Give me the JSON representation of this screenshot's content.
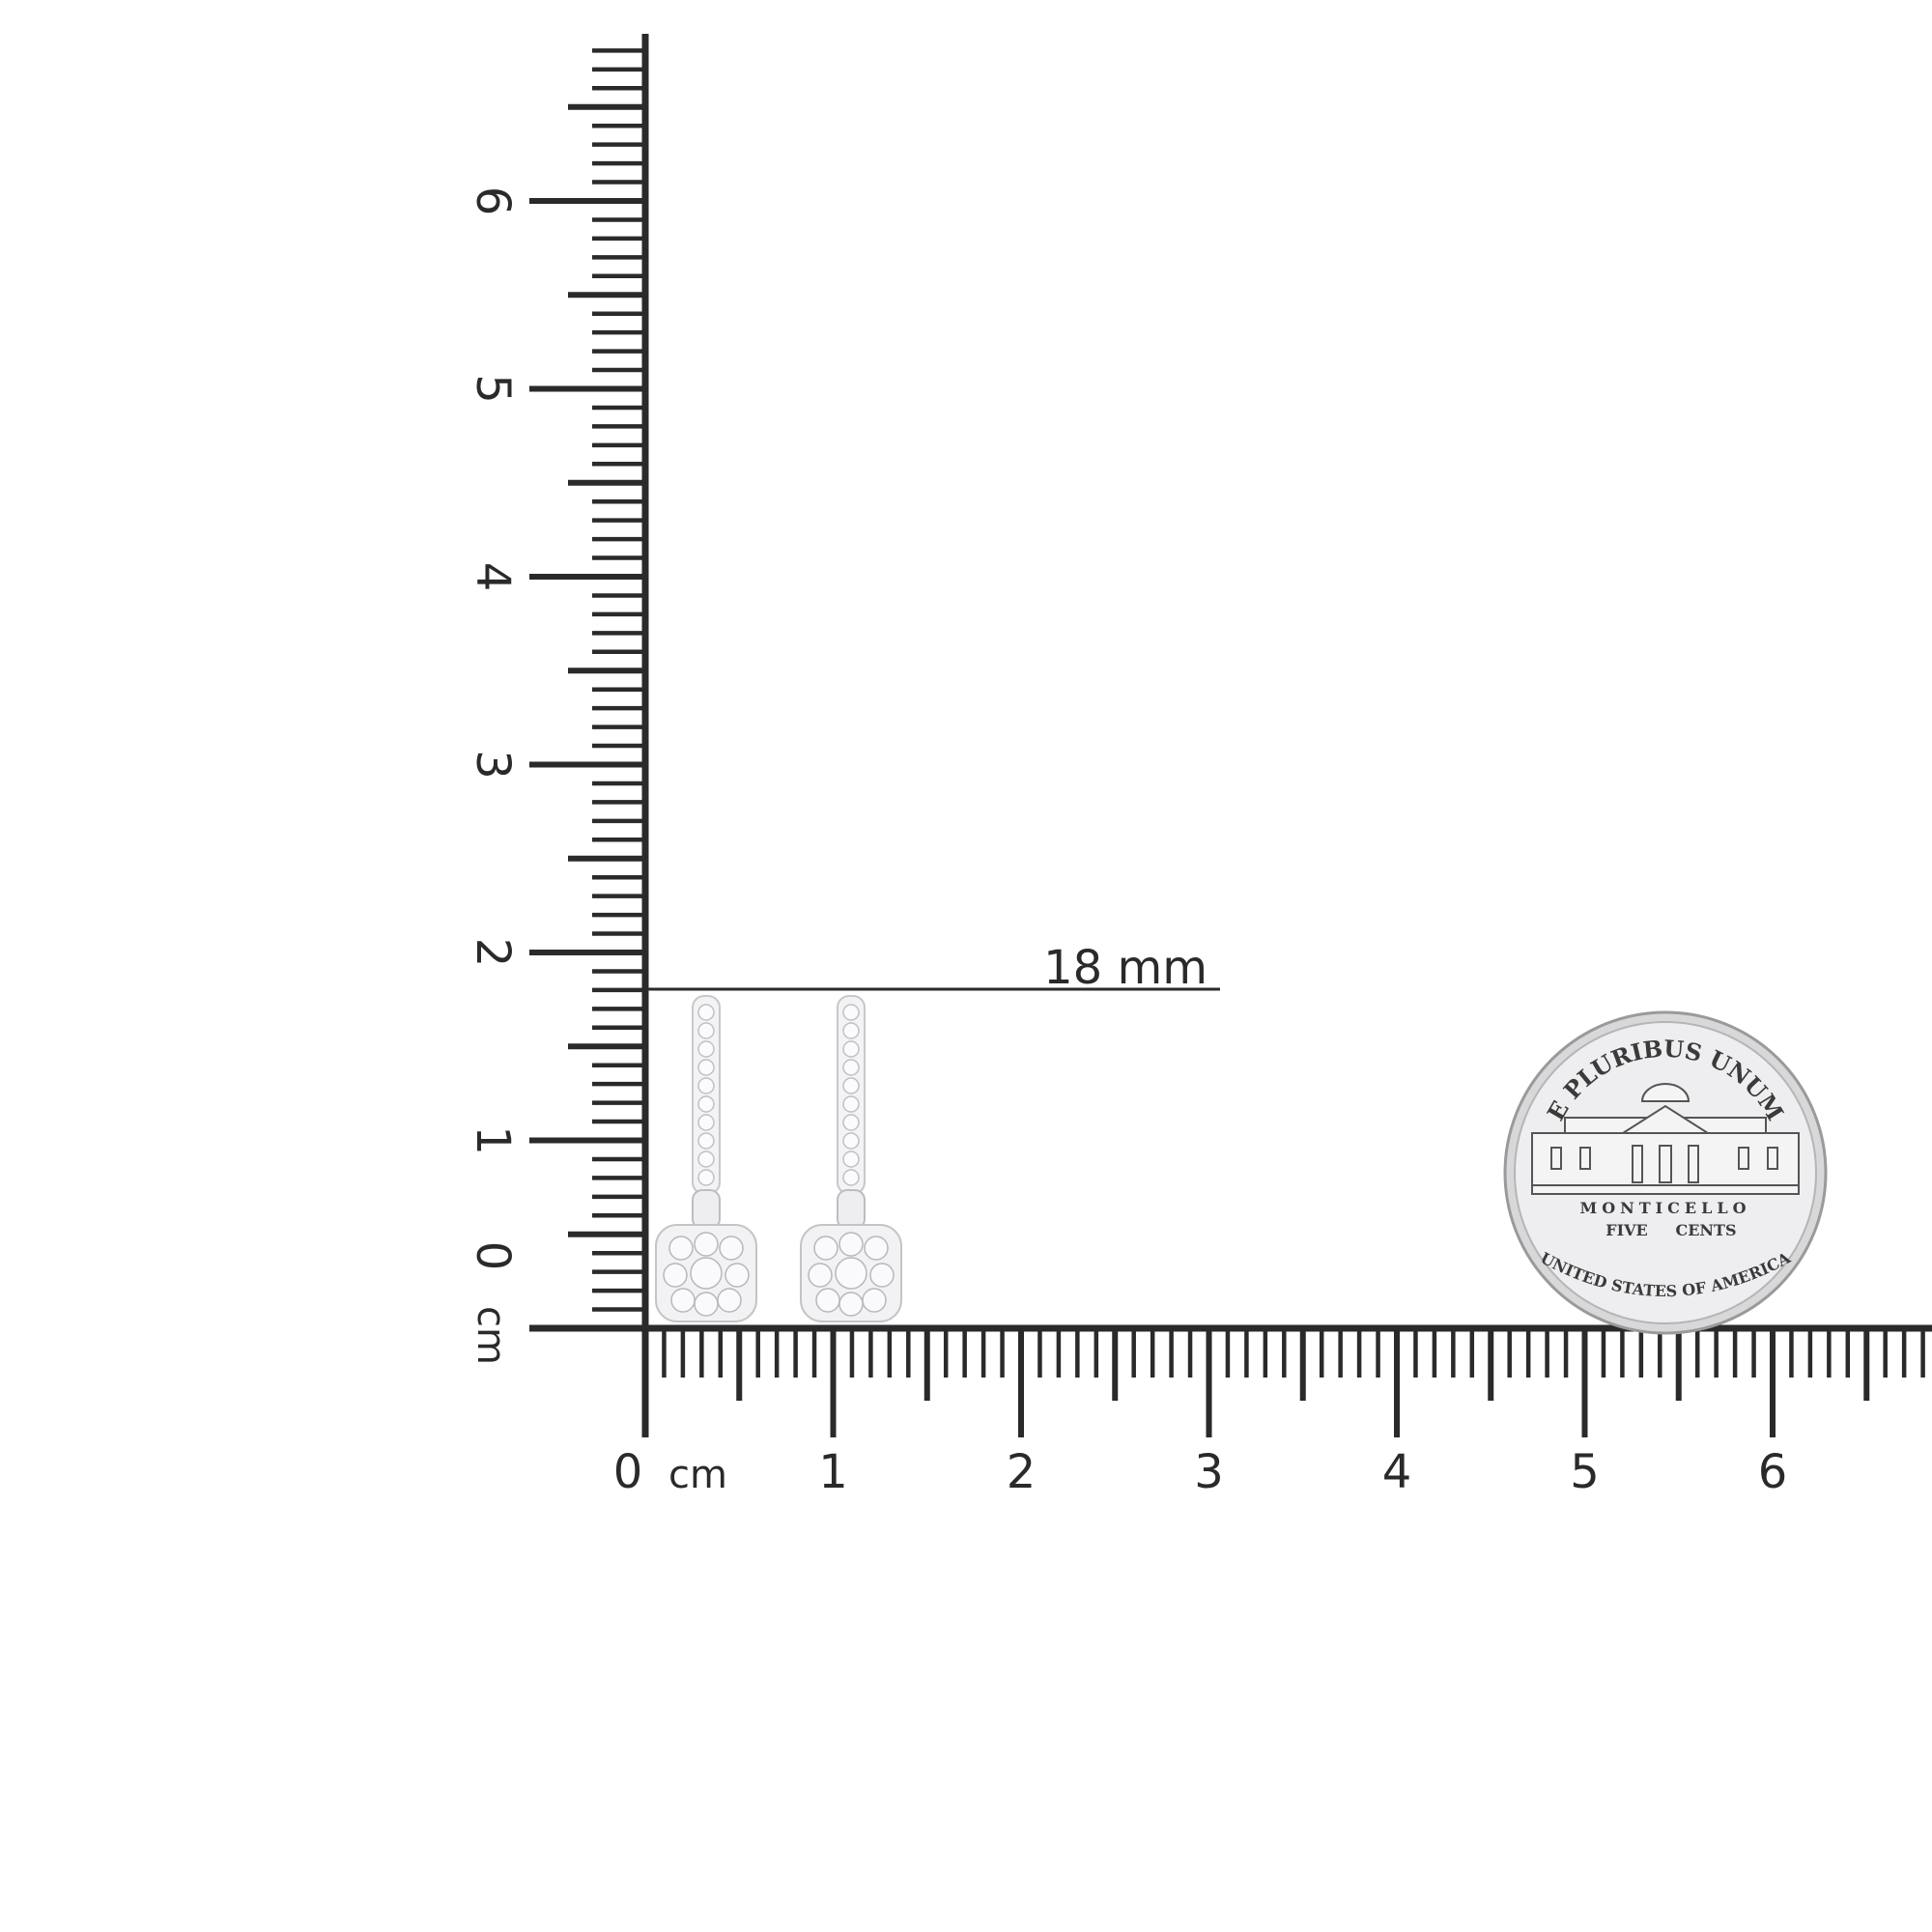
{
  "ruler": {
    "unit": "cm",
    "horizontal_labels": [
      "0",
      "1",
      "2",
      "3",
      "4",
      "5",
      "6"
    ],
    "vertical_labels": [
      "0",
      "1",
      "2",
      "3",
      "4",
      "5",
      "6"
    ],
    "unit_label": "cm",
    "mm_per_cm": 10
  },
  "measurement": {
    "label": "18 mm",
    "value_mm": 18
  },
  "coin": {
    "top_text": "E PLURIBUS UNUM",
    "building_text": "MONTICELLO",
    "value_left": "FIVE",
    "value_right": "CENTS",
    "bottom_text": "UNITED STATES OF AMERICA"
  },
  "colors": {
    "ink": "#2a2a2a",
    "metal": "#e8e8ea",
    "coin": "#dcdcdc"
  }
}
